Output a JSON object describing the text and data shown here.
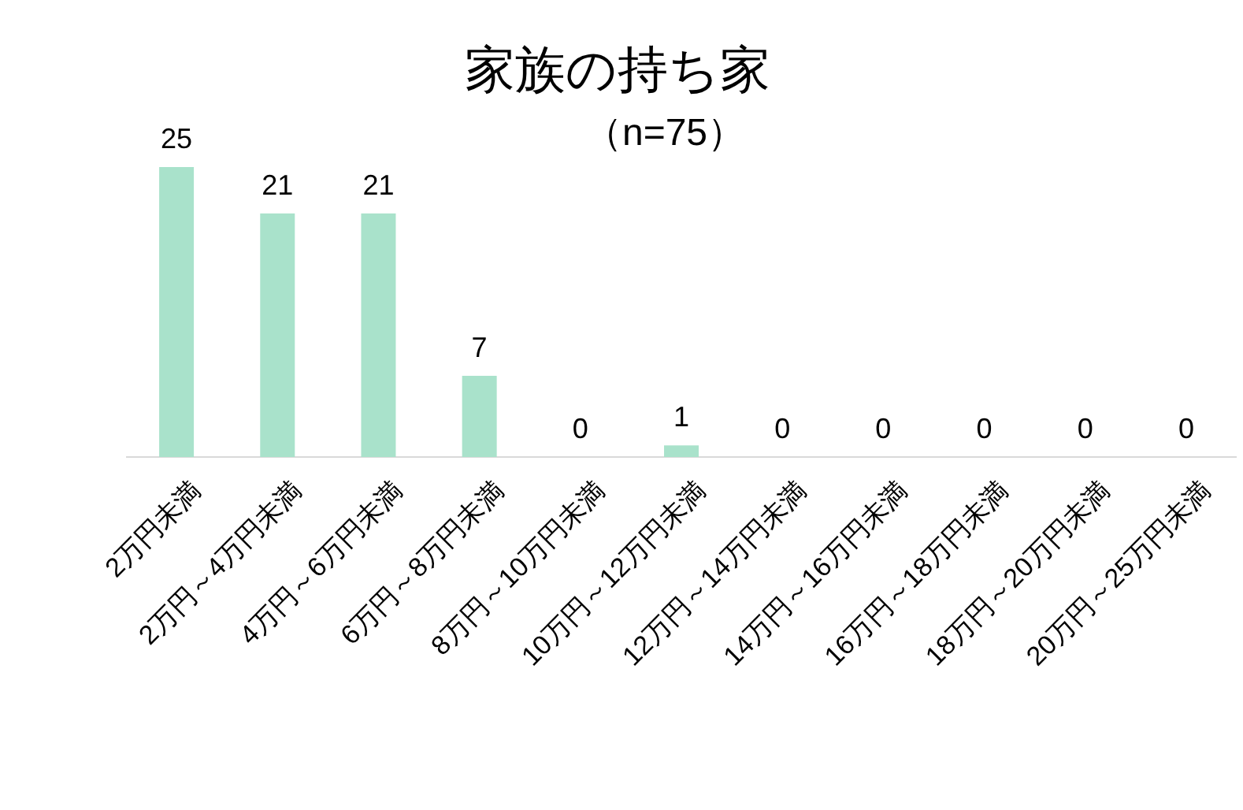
{
  "chart_data": {
    "type": "bar",
    "title": "家族の持ち家",
    "subtitle": "（n=75）",
    "categories": [
      "2万円未満",
      "2万円～4万円未満",
      "4万円～6万円未満",
      "6万円～8万円未満",
      "8万円～10万円未満",
      "10万円～12万円未満",
      "12万円～14万円未満",
      "14万円～16万円未満",
      "16万円～18万円未満",
      "18万円～20万円未満",
      "20万円～25万円未満"
    ],
    "values": [
      25,
      21,
      21,
      7,
      0,
      1,
      0,
      0,
      0,
      0,
      0
    ],
    "color": "#a9e2cb",
    "data_labels": true
  }
}
